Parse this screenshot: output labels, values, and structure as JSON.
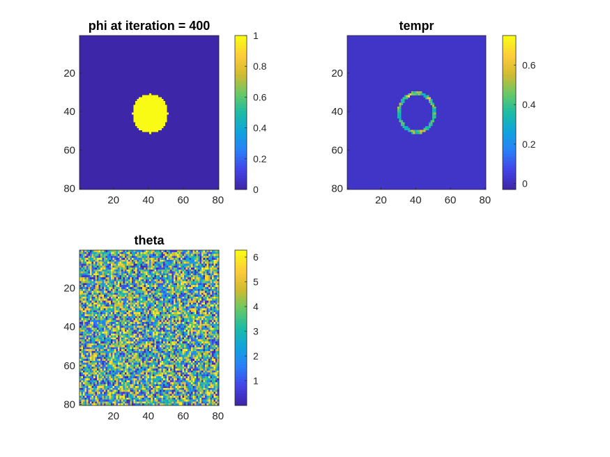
{
  "chart_data": [
    {
      "type": "heatmap",
      "title": "phi at iteration = 400",
      "grid_size": 80,
      "xlim": [
        0.5,
        80.5
      ],
      "ylim": [
        0.5,
        80.5
      ],
      "y_reversed": true,
      "x_ticks": [
        20,
        40,
        60,
        80
      ],
      "y_ticks": [
        20,
        40,
        60,
        80
      ],
      "clim": [
        0,
        1
      ],
      "colorbar_ticks": [
        0,
        0.2,
        0.4,
        0.6,
        0.8,
        1
      ],
      "field": {
        "kind": "disk",
        "center": [
          41,
          41
        ],
        "radius": 10,
        "inside_value": 1,
        "outside_value": 0
      }
    },
    {
      "type": "heatmap",
      "title": "tempr",
      "grid_size": 80,
      "xlim": [
        0.5,
        80.5
      ],
      "ylim": [
        0.5,
        80.5
      ],
      "y_reversed": true,
      "x_ticks": [
        20,
        40,
        60,
        80
      ],
      "y_ticks": [
        20,
        40,
        60,
        80
      ],
      "clim": [
        -0.03,
        0.75
      ],
      "colorbar_ticks": [
        0,
        0.2,
        0.4,
        0.6
      ],
      "field": {
        "kind": "ring",
        "center": [
          40.5,
          40.5
        ],
        "radius": 10,
        "band_width": 1.3,
        "background_value": 0.02,
        "ring_value_range": [
          0.1,
          0.75
        ]
      }
    },
    {
      "type": "heatmap",
      "title": "theta",
      "grid_size": 80,
      "xlim": [
        0.5,
        80.5
      ],
      "ylim": [
        0.5,
        80.5
      ],
      "y_reversed": true,
      "x_ticks": [
        20,
        40,
        60,
        80
      ],
      "y_ticks": [
        20,
        40,
        60,
        80
      ],
      "clim": [
        0,
        6.283
      ],
      "colorbar_ticks": [
        1,
        2,
        3,
        4,
        5,
        6
      ],
      "field": {
        "kind": "uniform-random",
        "value_range": [
          0,
          6.283
        ]
      }
    }
  ],
  "colormap": {
    "name": "parula",
    "stops": [
      "#3e26a8",
      "#4444e7",
      "#2a7ff7",
      "#10a4dd",
      "#1cbca5",
      "#68c867",
      "#cfbb30",
      "#fdcc39",
      "#f9fb15"
    ]
  }
}
